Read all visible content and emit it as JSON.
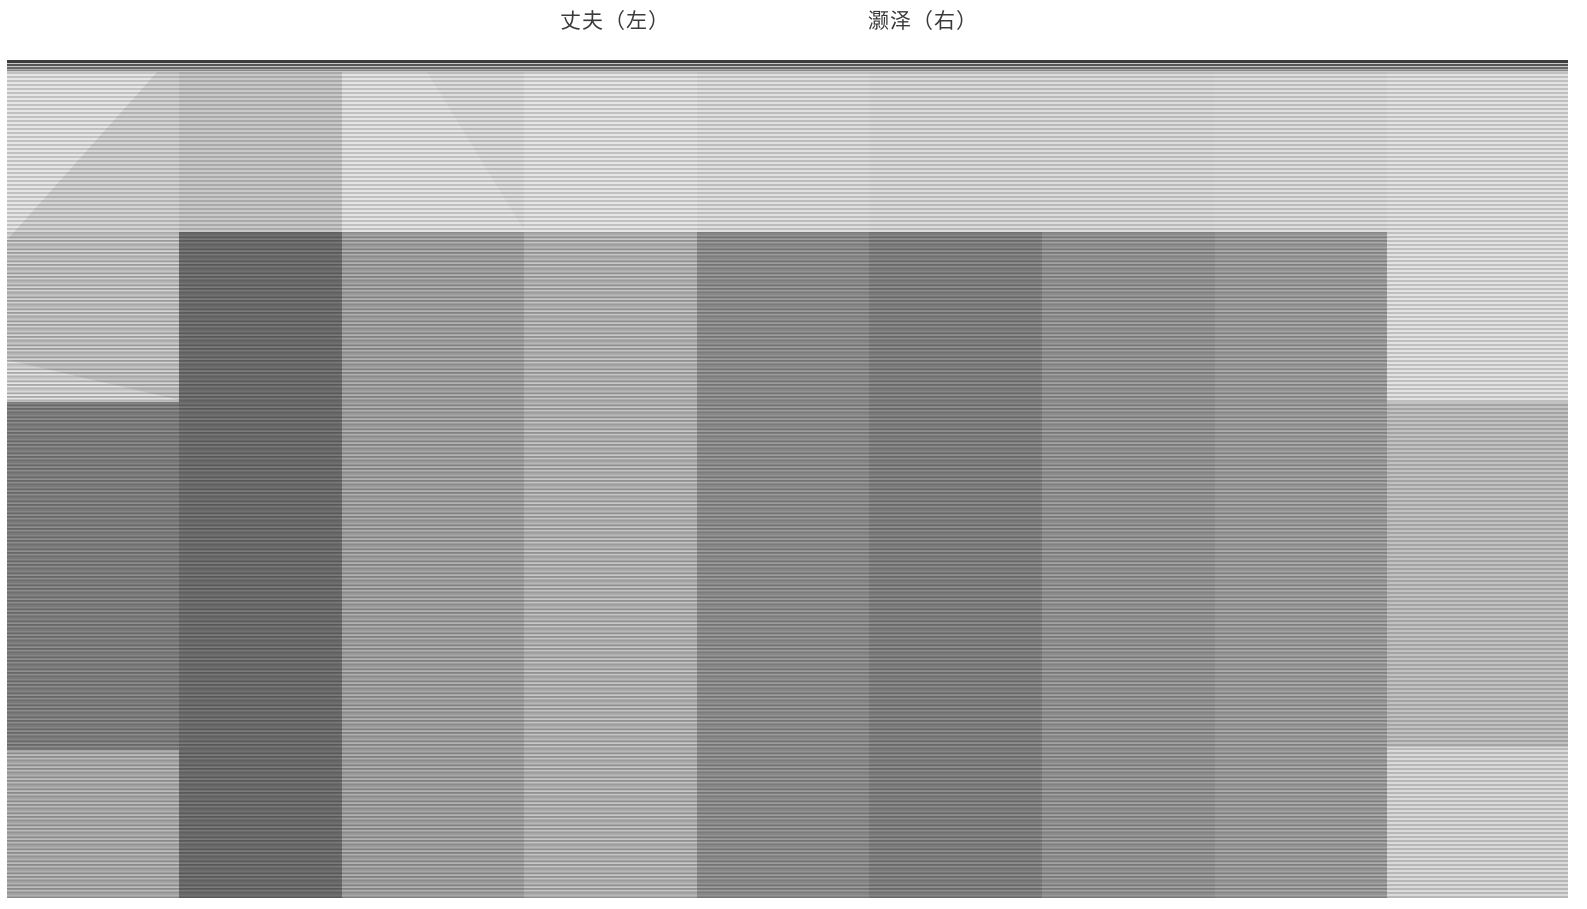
{
  "captions": {
    "left": "丈夫（左）",
    "right": "灏泽（右）"
  },
  "image": {
    "icon": "scanline-glitched-photo",
    "tones": {
      "light": "#e4e4e4",
      "mid_light": "#d2d2d2",
      "mid": "#b8b8b8",
      "mid_dark": "#9a9a9a",
      "dark": "#7e7e7e",
      "top_edge": "#4a4a4a"
    }
  }
}
